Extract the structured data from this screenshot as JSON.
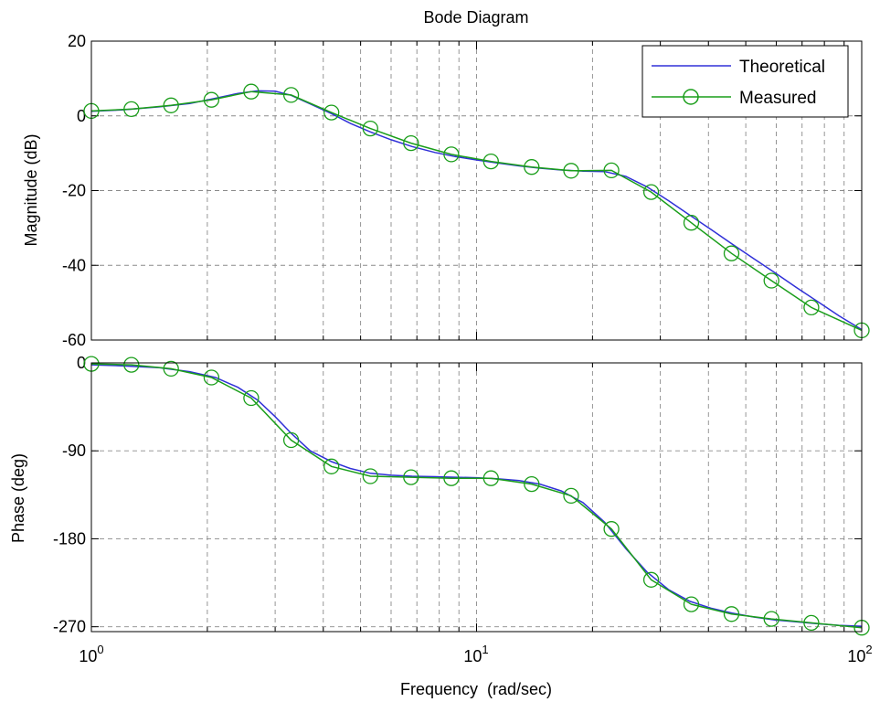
{
  "figure_title": "Bode Diagram",
  "xlabel": "Frequency  (rad/sec)",
  "legend": {
    "placement": "top-right",
    "entries": [
      {
        "label": "Theoretical",
        "color": "#3030d8",
        "marker": "none"
      },
      {
        "label": "Measured",
        "color": "#1a9e1a",
        "marker": "circle"
      }
    ]
  },
  "x_ticks": [
    {
      "base": "10",
      "exp": "0"
    },
    {
      "base": "10",
      "exp": "1"
    },
    {
      "base": "10",
      "exp": "2"
    }
  ],
  "chart_data": [
    {
      "type": "line",
      "panel": "magnitude",
      "ylabel": "Magnitude (dB)",
      "xscale": "log",
      "xlim": [
        1,
        100
      ],
      "ylim": [
        -60,
        20
      ],
      "yticks": [
        20,
        0,
        -20,
        -40,
        -60
      ],
      "ytick_labels": [
        "20",
        "0",
        "-20",
        "-40",
        "-60"
      ],
      "grid": true,
      "series": [
        {
          "name": "Theoretical",
          "x": [
            1,
            1.2,
            1.5,
            1.8,
            2.1,
            2.4,
            2.7,
            3.0,
            3.3,
            3.7,
            4.2,
            4.7,
            5.3,
            6.0,
            6.8,
            7.8,
            8.8,
            10,
            11.3,
            12.9,
            14.6,
            16.6,
            18.9,
            21.5,
            24.4,
            27.7,
            31.5,
            35.8,
            40.6,
            46.1,
            52.4,
            59.5,
            67.6,
            76.8,
            87.2,
            100
          ],
          "y": [
            1.2,
            1.6,
            2.4,
            3.3,
            4.7,
            6.0,
            6.7,
            6.6,
            5.5,
            3.2,
            0.6,
            -2.0,
            -4.3,
            -6.4,
            -8.2,
            -9.8,
            -10.9,
            -11.8,
            -12.6,
            -13.4,
            -14.0,
            -14.5,
            -14.8,
            -14.9,
            -16.2,
            -19.0,
            -22.7,
            -26.6,
            -30.4,
            -34.3,
            -38.2,
            -42.0,
            -45.9,
            -49.7,
            -53.5,
            -57.2
          ]
        },
        {
          "name": "Measured",
          "x": [
            1,
            1.27,
            1.61,
            2.05,
            2.6,
            3.3,
            4.2,
            5.3,
            6.76,
            8.6,
            10.9,
            13.9,
            17.6,
            22.4,
            28.4,
            36.1,
            45.9,
            58.3,
            74.0,
            100
          ],
          "y": [
            1.3,
            1.8,
            2.8,
            4.3,
            6.5,
            5.6,
            0.9,
            -3.4,
            -7.3,
            -10.3,
            -12.2,
            -13.7,
            -14.7,
            -14.6,
            -20.4,
            -28.6,
            -36.8,
            -44.1,
            -51.3,
            -57.4
          ]
        }
      ]
    },
    {
      "type": "line",
      "panel": "phase",
      "ylabel": "Phase (deg)",
      "xscale": "log",
      "xlim": [
        1,
        100
      ],
      "ylim": [
        -275,
        0
      ],
      "yticks": [
        0,
        -90,
        -180,
        -270
      ],
      "ytick_labels": [
        "0",
        "-90",
        "-180",
        "-270"
      ],
      "grid": true,
      "series": [
        {
          "name": "Theoretical",
          "x": [
            1,
            1.2,
            1.5,
            1.8,
            2.1,
            2.4,
            2.7,
            3.0,
            3.3,
            3.7,
            4.2,
            4.7,
            5.3,
            6.0,
            6.8,
            7.8,
            8.8,
            10,
            11.3,
            12.9,
            14.6,
            16.6,
            18.9,
            21.5,
            24.4,
            27.7,
            31.5,
            35.8,
            40.6,
            46.1,
            52.4,
            59.5,
            67.6,
            76.8,
            87.2,
            100
          ],
          "y": [
            -2,
            -3,
            -5,
            -9,
            -15,
            -25,
            -38,
            -55,
            -72,
            -90,
            -101,
            -108,
            -113,
            -115,
            -116,
            -116.5,
            -117,
            -117.5,
            -118.5,
            -120.5,
            -124,
            -131,
            -143,
            -163,
            -190,
            -214,
            -232,
            -244,
            -251,
            -256,
            -260,
            -263,
            -265,
            -267,
            -268.5,
            -269.5
          ]
        },
        {
          "name": "Measured",
          "x": [
            1,
            1.27,
            1.61,
            2.05,
            2.6,
            3.3,
            4.2,
            5.3,
            6.76,
            8.6,
            10.9,
            13.9,
            17.6,
            22.4,
            28.4,
            36.1,
            45.9,
            58.3,
            74.0,
            100
          ],
          "y": [
            -1,
            -2,
            -6,
            -15,
            -36,
            -79,
            -106,
            -116,
            -117,
            -118,
            -118,
            -124,
            -136,
            -170,
            -222,
            -247,
            -257,
            -262,
            -266,
            -271
          ]
        }
      ]
    }
  ]
}
